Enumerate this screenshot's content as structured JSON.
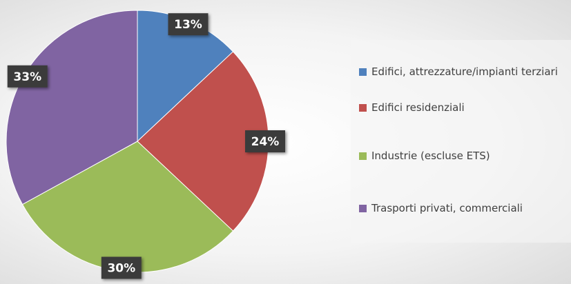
{
  "chart_data": {
    "type": "pie",
    "categories": [
      "Edifici, attrezzature/impianti terziari",
      "Edifici residenziali",
      "Industrie (escluse ETS)",
      "Trasporti privati, commerciali"
    ],
    "values": [
      13,
      24,
      30,
      33
    ],
    "value_labels": [
      "13%",
      "24%",
      "30%",
      "33%"
    ],
    "colors": [
      "#4f81bd",
      "#c0504d",
      "#9bbb59",
      "#8064a2"
    ],
    "legend": "right"
  }
}
